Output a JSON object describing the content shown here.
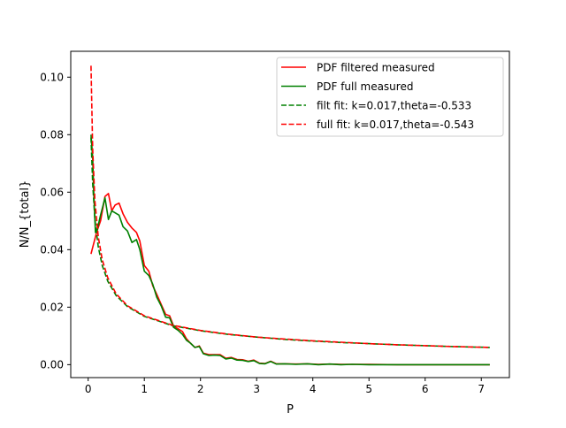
{
  "chart_data": {
    "type": "line",
    "title": "",
    "xlabel": "P",
    "ylabel": "N/N_{total}",
    "xlim": [
      -0.31,
      7.5
    ],
    "ylim": [
      -0.0045,
      0.109
    ],
    "xticks": [
      0,
      1,
      2,
      3,
      4,
      5,
      6,
      7
    ],
    "xtick_labels": [
      "0",
      "1",
      "2",
      "3",
      "4",
      "5",
      "6",
      "7"
    ],
    "yticks": [
      0.0,
      0.02,
      0.04,
      0.06,
      0.08,
      0.1
    ],
    "ytick_labels": [
      "0.00",
      "0.02",
      "0.04",
      "0.06",
      "0.08",
      "0.10"
    ],
    "grid": false,
    "legend_position": "upper right",
    "series": [
      {
        "name": "PDF filtered measured",
        "color": "#ff0000",
        "style": "solid",
        "x": [
          0.05,
          0.15,
          0.22,
          0.3,
          0.36,
          0.42,
          0.48,
          0.55,
          0.62,
          0.7,
          0.78,
          0.86,
          0.92,
          1.0,
          1.08,
          1.15,
          1.22,
          1.3,
          1.38,
          1.45,
          1.52,
          1.6,
          1.68,
          1.75,
          1.82,
          1.9,
          1.98,
          2.05,
          2.15,
          2.25,
          2.35,
          2.45,
          2.55,
          2.65,
          2.75,
          2.85,
          2.95,
          3.05,
          3.15,
          3.25,
          3.35,
          3.5,
          3.7,
          3.9,
          4.1,
          4.3,
          4.5,
          4.7,
          5.0,
          5.5,
          6.0,
          6.5,
          7.15
        ],
        "values": [
          0.0385,
          0.046,
          0.05,
          0.0585,
          0.0595,
          0.0535,
          0.0555,
          0.0562,
          0.0525,
          0.0495,
          0.0475,
          0.046,
          0.043,
          0.0345,
          0.0325,
          0.0275,
          0.0245,
          0.021,
          0.0175,
          0.017,
          0.0135,
          0.0125,
          0.0115,
          0.009,
          0.0075,
          0.006,
          0.0065,
          0.004,
          0.0035,
          0.0035,
          0.0035,
          0.0022,
          0.0025,
          0.0018,
          0.0017,
          0.0012,
          0.0016,
          0.0005,
          0.0004,
          0.0012,
          0.0003,
          0.0003,
          0.0002,
          0.0003,
          0.0001,
          0.0002,
          0.0001,
          0.0001,
          0.0001,
          0.0,
          0.0,
          0.0,
          0.0
        ]
      },
      {
        "name": "PDF full measured",
        "color": "#008000",
        "style": "solid",
        "x": [
          0.05,
          0.08,
          0.1,
          0.13,
          0.15,
          0.22,
          0.3,
          0.36,
          0.42,
          0.48,
          0.55,
          0.62,
          0.7,
          0.78,
          0.86,
          0.92,
          1.0,
          1.08,
          1.15,
          1.22,
          1.3,
          1.38,
          1.45,
          1.52,
          1.6,
          1.68,
          1.75,
          1.82,
          1.9,
          1.98,
          2.05,
          2.15,
          2.25,
          2.35,
          2.45,
          2.55,
          2.65,
          2.75,
          2.85,
          2.95,
          3.05,
          3.15,
          3.25,
          3.35,
          3.5,
          3.7,
          3.9,
          4.1,
          4.3,
          4.5,
          4.7,
          5.0,
          5.5,
          6.0,
          6.5,
          7.15
        ],
        "values": [
          0.08,
          0.072,
          0.06,
          0.046,
          0.046,
          0.052,
          0.058,
          0.0505,
          0.0535,
          0.0528,
          0.052,
          0.048,
          0.0465,
          0.0425,
          0.0435,
          0.04,
          0.0325,
          0.031,
          0.028,
          0.0235,
          0.0205,
          0.0165,
          0.0163,
          0.013,
          0.012,
          0.0105,
          0.0085,
          0.0075,
          0.006,
          0.0063,
          0.0038,
          0.0032,
          0.0033,
          0.0032,
          0.002,
          0.0023,
          0.0016,
          0.0015,
          0.0011,
          0.0014,
          0.0004,
          0.0003,
          0.0011,
          0.0002,
          0.0003,
          0.0001,
          0.0003,
          0.0,
          0.0002,
          0.0,
          0.0001,
          0.0,
          0.0,
          0.0,
          0.0,
          0.0
        ]
      },
      {
        "name": "filt fit: k=0.017,theta=-0.533",
        "color": "#008000",
        "style": "dashed",
        "x": [
          0.05,
          0.08,
          0.12,
          0.18,
          0.25,
          0.35,
          0.5,
          0.7,
          1.0,
          1.5,
          2.0,
          2.5,
          3.0,
          3.5,
          4.0,
          4.5,
          5.0,
          5.5,
          6.0,
          6.5,
          7.15
        ],
        "values": [
          0.079,
          0.063,
          0.0505,
          0.041,
          0.0345,
          0.029,
          0.024,
          0.0202,
          0.0168,
          0.0136,
          0.0118,
          0.0105,
          0.0096,
          0.0088,
          0.0082,
          0.0077,
          0.0073,
          0.0069,
          0.0066,
          0.0063,
          0.006
        ]
      },
      {
        "name": "full fit: k=0.017,theta=-0.543",
        "color": "#ff0000",
        "style": "dashed",
        "x": [
          0.05,
          0.08,
          0.12,
          0.18,
          0.25,
          0.35,
          0.5,
          0.7,
          1.0,
          1.5,
          2.0,
          2.5,
          3.0,
          3.5,
          4.0,
          4.5,
          5.0,
          5.5,
          6.0,
          6.5,
          7.15
        ],
        "values": [
          0.104,
          0.075,
          0.057,
          0.0445,
          0.0365,
          0.0302,
          0.0246,
          0.0205,
          0.017,
          0.0137,
          0.0119,
          0.0106,
          0.0096,
          0.0089,
          0.0083,
          0.0078,
          0.0073,
          0.0069,
          0.0066,
          0.0063,
          0.006
        ]
      }
    ]
  }
}
